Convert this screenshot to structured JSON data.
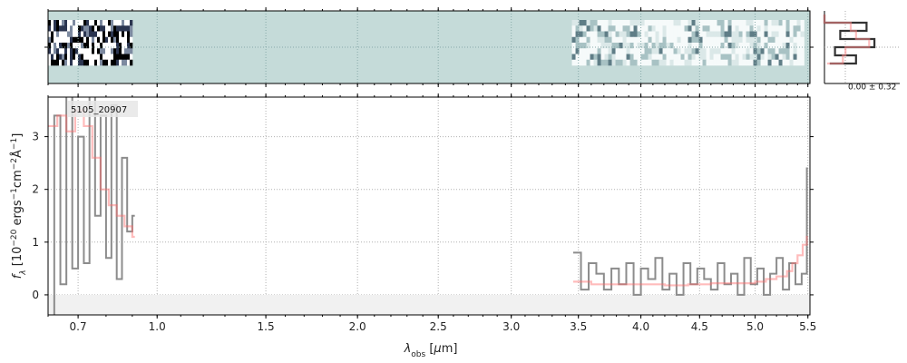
{
  "chart_data": [
    {
      "type": "heatmap",
      "panel": "2d-spectrum",
      "colormap": "bone",
      "background_color": "#c5dbd9",
      "ylim": [
        -0.5,
        0.5
      ],
      "ytick_labels": [
        ""
      ],
      "segments": [
        {
          "x_range": [
            0.6,
            0.9
          ],
          "rows": 8,
          "contrast": "high"
        },
        {
          "x_range": [
            3.45,
            5.46
          ],
          "rows": 8,
          "contrast": "low"
        }
      ]
    },
    {
      "type": "line",
      "panel": "1d-spectrum",
      "title": "",
      "annotation": "5105_20907",
      "xlabel": "λ_obs [μm]",
      "ylabel": "f_λ [10^−20 ergs^−1cm^−2Å^−1]",
      "xlim": [
        0.6,
        5.52
      ],
      "ylim": [
        -0.38,
        3.75
      ],
      "xscale": "sqrt",
      "x_ticks": [
        0.7,
        1.0,
        1.5,
        2.0,
        2.5,
        3.0,
        3.5,
        4.0,
        4.5,
        5.0,
        5.5
      ],
      "x_tick_labels": [
        "0.7",
        "1.0",
        "1.5",
        "2.0",
        "2.5",
        "3.0",
        "3.5",
        "4.0",
        "4.5",
        "5.0",
        "5.5"
      ],
      "y_ticks": [
        0,
        1,
        2,
        3
      ],
      "y_tick_labels": [
        "0",
        "1",
        "2",
        "3"
      ],
      "grid": true,
      "series": [
        {
          "role": "data",
          "color": "#8c8c8c",
          "segments": [
            {
              "x": [
                0.6,
                0.62,
                0.64,
                0.66,
                0.68,
                0.7,
                0.72,
                0.74,
                0.76,
                0.78,
                0.8,
                0.82,
                0.84,
                0.86,
                0.88,
                0.9
              ],
              "y": [
                -1.5,
                3.4,
                0.2,
                4.2,
                0.5,
                3.0,
                0.6,
                3.8,
                1.5,
                3.4,
                0.7,
                3.6,
                0.3,
                2.6,
                1.2,
                1.5
              ]
            },
            {
              "x": [
                3.46,
                3.52,
                3.58,
                3.64,
                3.7,
                3.76,
                3.82,
                3.88,
                3.94,
                4.0,
                4.06,
                4.12,
                4.18,
                4.24,
                4.3,
                4.36,
                4.42,
                4.48,
                4.54,
                4.6,
                4.66,
                4.72,
                4.78,
                4.84,
                4.9,
                4.96,
                5.02,
                5.08,
                5.14,
                5.2,
                5.26,
                5.32,
                5.38,
                5.44,
                5.49
              ],
              "y": [
                0.8,
                0.1,
                0.6,
                0.4,
                0.1,
                0.5,
                0.2,
                0.6,
                0.0,
                0.5,
                0.3,
                0.7,
                0.1,
                0.4,
                0.0,
                0.6,
                0.2,
                0.5,
                0.3,
                0.1,
                0.6,
                0.2,
                0.4,
                0.0,
                0.7,
                0.2,
                0.5,
                0.0,
                0.4,
                0.7,
                0.1,
                0.6,
                0.2,
                0.4,
                2.4
              ]
            }
          ]
        },
        {
          "role": "model",
          "color": "#ff6b6b",
          "opacity": 0.45,
          "segments": [
            {
              "x": [
                0.6,
                0.63,
                0.66,
                0.69,
                0.72,
                0.75,
                0.78,
                0.81,
                0.84,
                0.87,
                0.9
              ],
              "y": [
                3.2,
                3.4,
                3.1,
                3.5,
                3.2,
                2.6,
                2.0,
                1.7,
                1.5,
                1.3,
                1.1
              ]
            },
            {
              "x": [
                3.46,
                3.6,
                3.8,
                4.0,
                4.2,
                4.4,
                4.6,
                4.8,
                5.0,
                5.1,
                5.2,
                5.3,
                5.35,
                5.4,
                5.45,
                5.49
              ],
              "y": [
                0.25,
                0.2,
                0.2,
                0.2,
                0.18,
                0.2,
                0.22,
                0.22,
                0.25,
                0.3,
                0.35,
                0.45,
                0.6,
                0.75,
                0.95,
                1.1
              ]
            }
          ]
        }
      ]
    },
    {
      "type": "line",
      "panel": "profile",
      "annotation": "0.00 ± 0.32",
      "series": [
        {
          "role": "data",
          "color": "#333333",
          "y": [
            0.0,
            0.8,
            0.3,
            0.95,
            0.2,
            0.6,
            0.1
          ]
        },
        {
          "role": "model",
          "color": "#ff8a8a",
          "opacity": 0.55,
          "y": [
            0.0,
            0.5,
            0.6,
            0.85,
            0.4,
            0.35,
            0.05
          ]
        }
      ]
    }
  ]
}
